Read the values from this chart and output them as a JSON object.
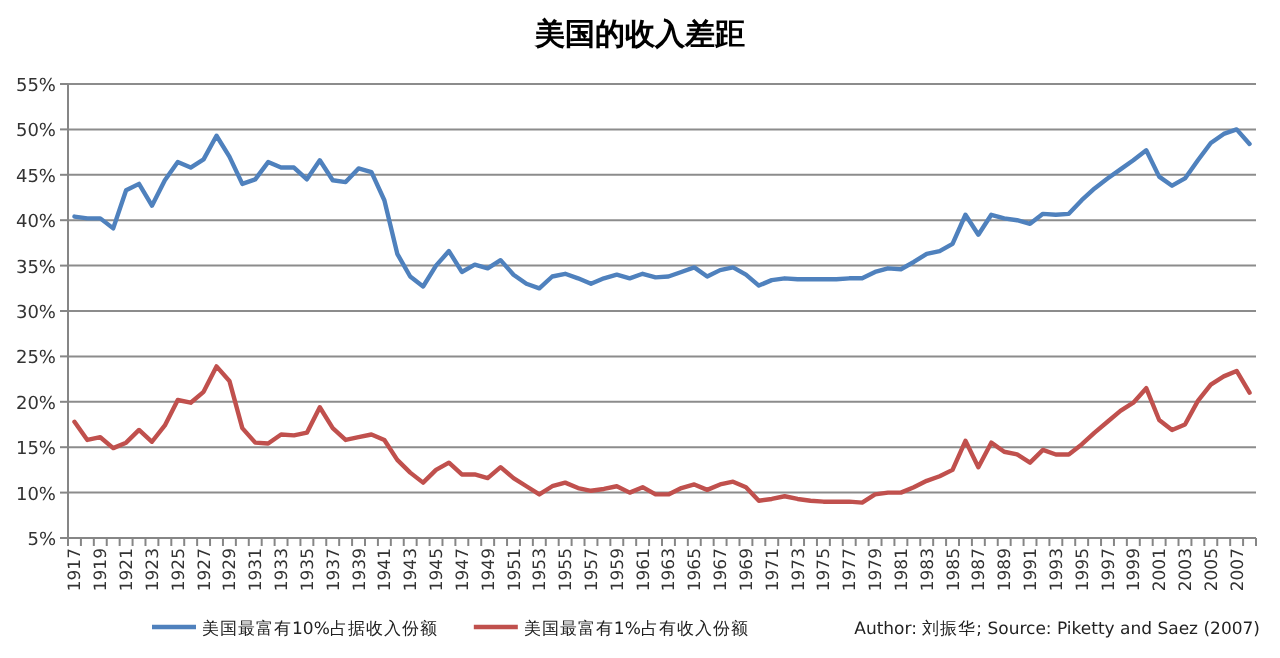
{
  "chart_data": {
    "type": "line",
    "title": "美国的收入差距",
    "categories": [
      "1917",
      null,
      "1919",
      null,
      "1921",
      null,
      "1923",
      null,
      "1925",
      null,
      "1927",
      null,
      "1929",
      null,
      "1931",
      null,
      "1933",
      null,
      "1935",
      null,
      "1937",
      null,
      "1939",
      null,
      "1941",
      null,
      "1943",
      null,
      "1945",
      null,
      "1947",
      null,
      "1949",
      null,
      "1951",
      null,
      "1953",
      null,
      "1955",
      null,
      "1957",
      null,
      "1959",
      null,
      "1961",
      null,
      "1963",
      null,
      "1965",
      null,
      "1967",
      null,
      "1969",
      null,
      "1971",
      null,
      "1973",
      null,
      "1975",
      null,
      "1977",
      null,
      "1979",
      null,
      "1981",
      null,
      "1983",
      null,
      "1985",
      null,
      "1987",
      null,
      "1989",
      null,
      "1991",
      null,
      "1993",
      null,
      "1995",
      null,
      "1997",
      null,
      "1999",
      null,
      "2001",
      null,
      "2003",
      null,
      "2005",
      null,
      "2007",
      null
    ],
    "series": [
      {
        "name": "美国最富有10%占据收入份额",
        "color": "#4f81bd",
        "values": [
          40.4,
          40.2,
          40.2,
          39.1,
          43.3,
          44.0,
          41.6,
          44.4,
          46.4,
          45.8,
          46.7,
          49.3,
          47.0,
          44.0,
          44.5,
          46.4,
          45.8,
          45.8,
          44.5,
          46.6,
          44.4,
          44.2,
          45.7,
          45.3,
          42.2,
          36.3,
          33.8,
          32.7,
          35.0,
          36.6,
          34.3,
          35.1,
          34.7,
          35.6,
          34.0,
          33.0,
          32.5,
          33.8,
          34.1,
          33.6,
          33.0,
          33.6,
          34.0,
          33.6,
          34.1,
          33.7,
          33.8,
          34.3,
          34.8,
          33.8,
          34.5,
          34.8,
          34.0,
          32.8,
          33.4,
          33.6,
          33.5,
          33.5,
          33.5,
          33.5,
          33.6,
          33.6,
          34.3,
          34.7,
          34.6,
          35.4,
          36.3,
          36.6,
          37.4,
          40.6,
          38.4,
          40.6,
          40.2,
          40.0,
          39.6,
          40.7,
          40.6,
          40.7,
          42.2,
          43.5,
          44.6,
          45.6,
          46.6,
          47.7,
          44.8,
          43.8,
          44.6,
          46.6,
          48.5,
          49.5,
          50.0,
          48.4
        ]
      },
      {
        "name": "美国最富有1%占有收入份额",
        "color": "#c0504d",
        "values": [
          17.8,
          15.8,
          16.1,
          14.9,
          15.5,
          16.9,
          15.6,
          17.4,
          20.2,
          19.9,
          21.1,
          23.9,
          22.3,
          17.1,
          15.5,
          15.4,
          16.4,
          16.3,
          16.6,
          19.4,
          17.1,
          15.8,
          16.1,
          16.4,
          15.8,
          13.6,
          12.2,
          11.1,
          12.5,
          13.3,
          12.0,
          12.0,
          11.6,
          12.8,
          11.6,
          10.7,
          9.8,
          10.7,
          11.1,
          10.5,
          10.2,
          10.4,
          10.7,
          10.0,
          10.6,
          9.8,
          9.8,
          10.5,
          10.9,
          10.3,
          10.9,
          11.2,
          10.6,
          9.1,
          9.3,
          9.6,
          9.3,
          9.1,
          9.0,
          9.0,
          9.0,
          8.9,
          9.8,
          10.0,
          10.0,
          10.6,
          11.3,
          11.8,
          12.5,
          15.7,
          12.8,
          15.5,
          14.5,
          14.2,
          13.3,
          14.7,
          14.2,
          14.2,
          15.3,
          16.6,
          17.8,
          19.0,
          19.9,
          21.5,
          18.0,
          16.9,
          17.5,
          20.1,
          21.9,
          22.8,
          23.4,
          21.0
        ]
      }
    ],
    "ylim": [
      5,
      55
    ],
    "yticks": [
      {
        "value": 5,
        "label": "5%"
      },
      {
        "value": 10,
        "label": "10%"
      },
      {
        "value": 15,
        "label": "15%"
      },
      {
        "value": 20,
        "label": "20%"
      },
      {
        "value": 25,
        "label": "25%"
      },
      {
        "value": 30,
        "label": "30%"
      },
      {
        "value": 35,
        "label": "35%"
      },
      {
        "value": 40,
        "label": "40%"
      },
      {
        "value": 45,
        "label": "45%"
      },
      {
        "value": 50,
        "label": "50%"
      },
      {
        "value": 55,
        "label": "55%"
      }
    ],
    "grid": "y",
    "legend": "bottom",
    "annotations": [
      "Author: 刘振华; Source: Piketty and Saez (2007)"
    ]
  }
}
